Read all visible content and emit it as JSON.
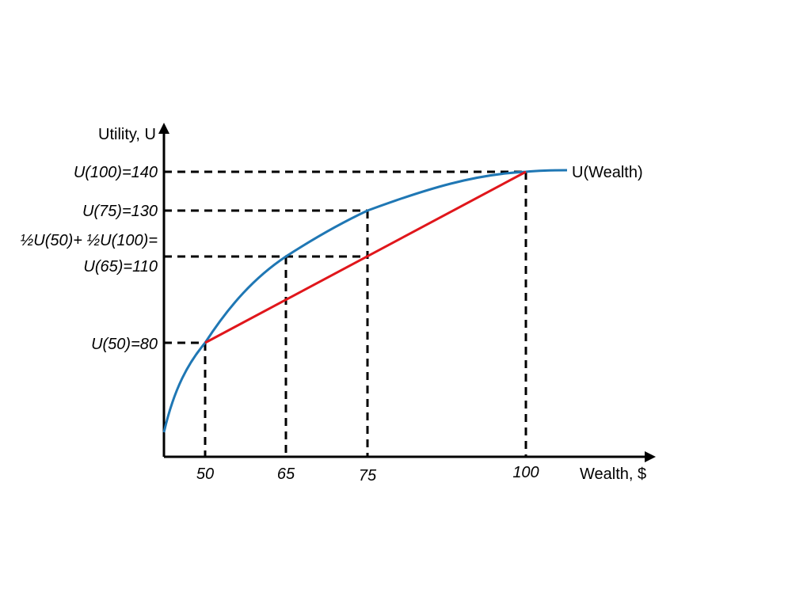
{
  "chart_data": {
    "type": "line",
    "xlabel": "Wealth, $",
    "ylabel": "Utility, U",
    "x_ticks": [
      "50",
      "65",
      "75",
      "100"
    ],
    "series": [
      {
        "name": "U(Wealth)",
        "color": "#1f77b4",
        "style": "concave-curve",
        "points": [
          {
            "x": 50,
            "y": 80
          },
          {
            "x": 65,
            "y": 110
          },
          {
            "x": 75,
            "y": 130
          },
          {
            "x": 100,
            "y": 140
          }
        ]
      },
      {
        "name": "",
        "color": "#e0161b",
        "style": "chord",
        "points": [
          {
            "x": 50,
            "y": 80
          },
          {
            "x": 100,
            "y": 140
          }
        ]
      }
    ],
    "reference_lines": [
      {
        "label_lines": [
          "U(100)=140"
        ],
        "x": 100,
        "y": 140
      },
      {
        "label_lines": [
          "U(75)=130"
        ],
        "x": 75,
        "y": 130
      },
      {
        "label_lines": [
          "½U(50)+ ½U(100)=",
          "U(65)=110"
        ],
        "x": 65,
        "y": 110,
        "x_end": 75
      },
      {
        "label_lines": [
          "U(50)=80"
        ],
        "x": 50,
        "y": 80
      }
    ],
    "colors": {
      "axis": "#000000",
      "curve": "#1f77b4",
      "chord": "#e0161b",
      "guide": "#000000"
    }
  }
}
